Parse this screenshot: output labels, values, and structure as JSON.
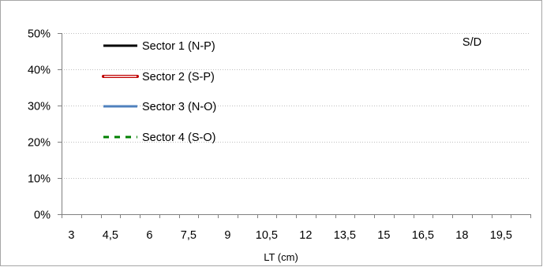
{
  "chart_data": {
    "type": "line",
    "annotation": "S/D",
    "xlabel": "LT (cm)",
    "ylabel": "",
    "x_tick_labels": [
      "3",
      "4,5",
      "6",
      "7,5",
      "9",
      "10,5",
      "12",
      "13,5",
      "15",
      "16,5",
      "18",
      "19,5"
    ],
    "y_tick_labels": [
      "0%",
      "10%",
      "20%",
      "30%",
      "40%",
      "50%"
    ],
    "ylim": [
      0,
      0.5
    ],
    "y_step": 0.1,
    "grid": {
      "horizontal": true,
      "vertical": false
    },
    "legend_position": "top-left",
    "series": [
      {
        "name": "Sector 1 (N-P)",
        "color": "#000000",
        "style": "solid",
        "values": []
      },
      {
        "name": "Sector 2 (S-P)",
        "color": "#c00000",
        "style": "double",
        "values": []
      },
      {
        "name": "Sector 3 (N-O)",
        "color": "#4f81bd",
        "style": "solid",
        "values": []
      },
      {
        "name": "Sector 4 (S-O)",
        "color": "#008000",
        "style": "dashed",
        "values": []
      }
    ]
  }
}
